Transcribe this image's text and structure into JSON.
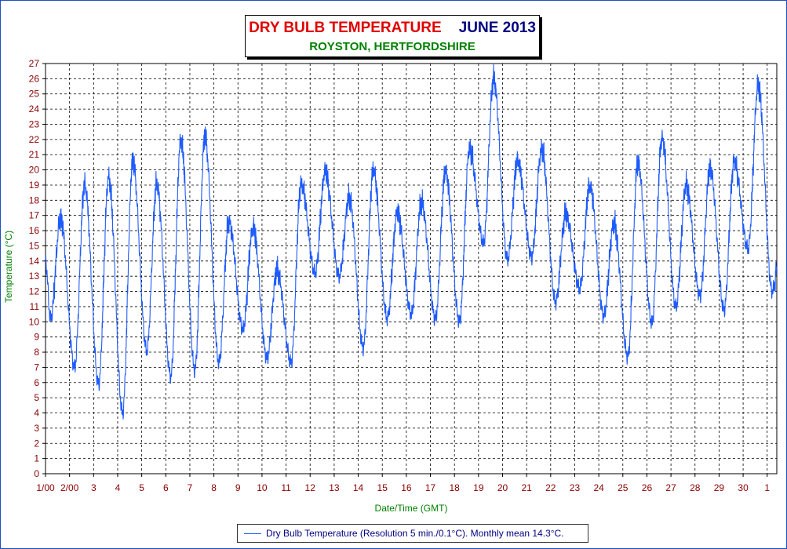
{
  "chart_data": {
    "type": "line",
    "title": "DRY BULB TEMPERATURE",
    "title_month": "JUNE 2013",
    "subtitle": "ROYSTON, HERTFORDSHIRE",
    "xlabel": "Date/Time (GMT)",
    "ylabel": "Temperature (°C)",
    "ylim": [
      0,
      27
    ],
    "xlim": [
      1,
      31.4
    ],
    "y_ticks": [
      0,
      1,
      2,
      3,
      4,
      5,
      6,
      7,
      8,
      9,
      10,
      11,
      12,
      13,
      14,
      15,
      16,
      17,
      18,
      19,
      20,
      21,
      22,
      23,
      24,
      25,
      26,
      27
    ],
    "x_tick_labels": [
      "1/00",
      "2/00",
      "3",
      "4",
      "5",
      "6",
      "7",
      "8",
      "9",
      "10",
      "11",
      "12",
      "13",
      "14",
      "15",
      "16",
      "17",
      "18",
      "19",
      "20",
      "21",
      "22",
      "23",
      "24",
      "25",
      "26",
      "27",
      "28",
      "29",
      "30",
      "1"
    ],
    "grid": true,
    "legend_position": "bottom",
    "series": [
      {
        "name": "Dry Bulb Temperature (Resolution 5 min./0.1°C). Monthly mean 14.3°C.",
        "color": "#1e5bff",
        "daily_min": [
          10.2,
          7.0,
          5.9,
          4.0,
          8.1,
          6.4,
          6.8,
          7.3,
          9.5,
          7.6,
          7.3,
          13.2,
          13.0,
          8.3,
          10.2,
          10.5,
          10.2,
          10.0,
          15.2,
          14.1,
          14.3,
          11.3,
          12.2,
          10.4,
          7.7,
          9.9,
          11.0,
          11.7,
          10.8,
          14.8,
          12.0
        ],
        "daily_max": [
          16.8,
          19.0,
          19.5,
          20.6,
          19.1,
          22.0,
          22.2,
          16.6,
          16.2,
          13.4,
          19.1,
          19.9,
          18.2,
          20.0,
          17.2,
          17.9,
          19.9,
          21.4,
          26.0,
          20.6,
          21.4,
          17.1,
          19.0,
          16.5,
          20.5,
          22.1,
          19.0,
          20.1,
          20.5,
          25.6,
          16.0
        ]
      }
    ]
  }
}
